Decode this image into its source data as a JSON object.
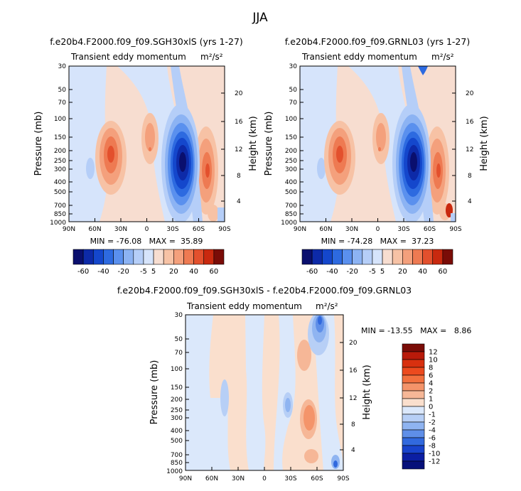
{
  "page_title": "JJA",
  "chart_data": [
    {
      "type": "heatmap",
      "title": "f.e20b4.F2000.f09_f09.SGH30xlS (yrs 1-27)",
      "subtitle": "Transient eddy momentum",
      "units": "m²/s²",
      "ylabel": "Pressure (mb)",
      "y2label": "Height (km)",
      "x_ticks": [
        "90N",
        "60N",
        "30N",
        "0",
        "30S",
        "60S",
        "90S"
      ],
      "y_ticks": [
        "30",
        "50",
        "70",
        "100",
        "150",
        "200",
        "250",
        "300",
        "400",
        "500",
        "700",
        "850",
        "1000"
      ],
      "y2_ticks": [
        "20",
        "16",
        "12",
        "8",
        "4"
      ],
      "stats": "MIN = -76.08   MAX =  35.89",
      "min": -76.08,
      "max": 35.89,
      "y_scale": "log",
      "colorbar": {
        "orientation": "horizontal",
        "levels": [
          "-60",
          "-40",
          "-20",
          "-5",
          "5",
          "20",
          "40",
          "60"
        ],
        "colors": [
          "#0a0f6e",
          "#0d2aa8",
          "#1447cc",
          "#2d6ae0",
          "#5a90ee",
          "#8cb3f3",
          "#b5cef8",
          "#d6e4fb",
          "#f7ddd0",
          "#f7c2a5",
          "#f4a07c",
          "#ee7a52",
          "#e3502d",
          "#c9290f",
          "#7a0c07"
        ]
      }
    },
    {
      "type": "heatmap",
      "title": "f.e20b4.F2000.f09_f09.GRNL03 (yrs 1-27)",
      "subtitle": "Transient eddy momentum",
      "units": "m²/s²",
      "ylabel": "Pressure (mb)",
      "y2label": "Height (km)",
      "x_ticks": [
        "90N",
        "60N",
        "30N",
        "0",
        "30S",
        "60S",
        "90S"
      ],
      "y_ticks": [
        "30",
        "50",
        "70",
        "100",
        "150",
        "200",
        "250",
        "300",
        "400",
        "500",
        "700",
        "850",
        "1000"
      ],
      "y2_ticks": [
        "20",
        "16",
        "12",
        "8",
        "4"
      ],
      "stats": "MIN = -74.28   MAX =  37.23",
      "min": -74.28,
      "max": 37.23,
      "y_scale": "log",
      "colorbar": {
        "orientation": "horizontal",
        "levels": [
          "-60",
          "-40",
          "-20",
          "-5",
          "5",
          "20",
          "40",
          "60"
        ],
        "colors": [
          "#0a0f6e",
          "#0d2aa8",
          "#1447cc",
          "#2d6ae0",
          "#5a90ee",
          "#8cb3f3",
          "#b5cef8",
          "#d6e4fb",
          "#f7ddd0",
          "#f7c2a5",
          "#f4a07c",
          "#ee7a52",
          "#e3502d",
          "#c9290f",
          "#7a0c07"
        ]
      }
    },
    {
      "type": "heatmap",
      "title": "f.e20b4.F2000.f09_f09.SGH30xlS - f.e20b4.F2000.f09_f09.GRNL03",
      "subtitle": "Transient eddy momentum",
      "units": "m²/s²",
      "ylabel": "Pressure (mb)",
      "y2label": "Height (km)",
      "x_ticks": [
        "90N",
        "60N",
        "30N",
        "0",
        "30S",
        "60S",
        "90S"
      ],
      "y_ticks": [
        "30",
        "50",
        "70",
        "100",
        "150",
        "200",
        "250",
        "300",
        "400",
        "500",
        "700",
        "850",
        "1000"
      ],
      "y2_ticks": [
        "20",
        "16",
        "12",
        "8",
        "4"
      ],
      "stats": "MIN = -13.55   MAX =   8.86",
      "min": -13.55,
      "max": 8.86,
      "y_scale": "log",
      "colorbar": {
        "orientation": "vertical",
        "levels": [
          "12",
          "10",
          "8",
          "6",
          "4",
          "2",
          "1",
          "0",
          "-1",
          "-2",
          "-4",
          "-6",
          "-8",
          "-10",
          "-12"
        ],
        "colors": [
          "#7a0c07",
          "#b81a0a",
          "#d8300f",
          "#ec4a1e",
          "#f2703e",
          "#f4946a",
          "#f6b797",
          "#fadfcd",
          "#dbe8fb",
          "#b7cff6",
          "#8fb4f1",
          "#5f8fe8",
          "#3169de",
          "#1843cc",
          "#0b1ea3",
          "#06107a"
        ]
      }
    }
  ]
}
